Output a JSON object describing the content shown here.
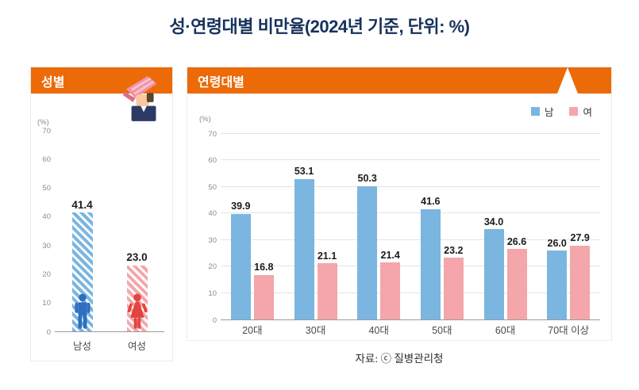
{
  "page": {
    "title": "성·연령대별 비만율(2024년 기준, 단위: %)",
    "source": "자료: ⓒ 질병관리청"
  },
  "colors": {
    "accent_orange": "#EC6A08",
    "male_blue": "#7AB6E0",
    "female_pink": "#F4A6AB",
    "male_icon_blue": "#2E6FC0",
    "female_icon_red": "#E2453F",
    "title_navy": "#16325C",
    "grid_gray": "#E3E3E3",
    "axis_gray": "#9B9B9B",
    "tick_text": "#8C8C8C",
    "value_text": "#1A1A1A"
  },
  "chart_data": [
    {
      "type": "bar",
      "title": "성별",
      "categories": [
        "남성",
        "여성"
      ],
      "values": [
        41.4,
        23.0
      ],
      "ylabel": "(%)",
      "ylim": [
        0,
        70
      ],
      "yticks": [
        0,
        10,
        20,
        30,
        40,
        50,
        60,
        70
      ],
      "grid": false,
      "bar_style": "diagonal-stripes",
      "legend_position": "none"
    },
    {
      "type": "bar",
      "title": "연령대별",
      "categories": [
        "20대",
        "30대",
        "40대",
        "50대",
        "60대",
        "70대 이상"
      ],
      "series": [
        {
          "name": "남",
          "values": [
            39.9,
            53.1,
            50.3,
            41.6,
            34.0,
            26.0
          ]
        },
        {
          "name": "여",
          "values": [
            16.8,
            21.1,
            21.4,
            23.2,
            26.6,
            27.9
          ]
        }
      ],
      "ylabel": "(%)",
      "ylim": [
        0,
        70
      ],
      "yticks": [
        0,
        10,
        20,
        30,
        40,
        50,
        60,
        70
      ],
      "grid": true,
      "legend_position": "top-right"
    }
  ]
}
